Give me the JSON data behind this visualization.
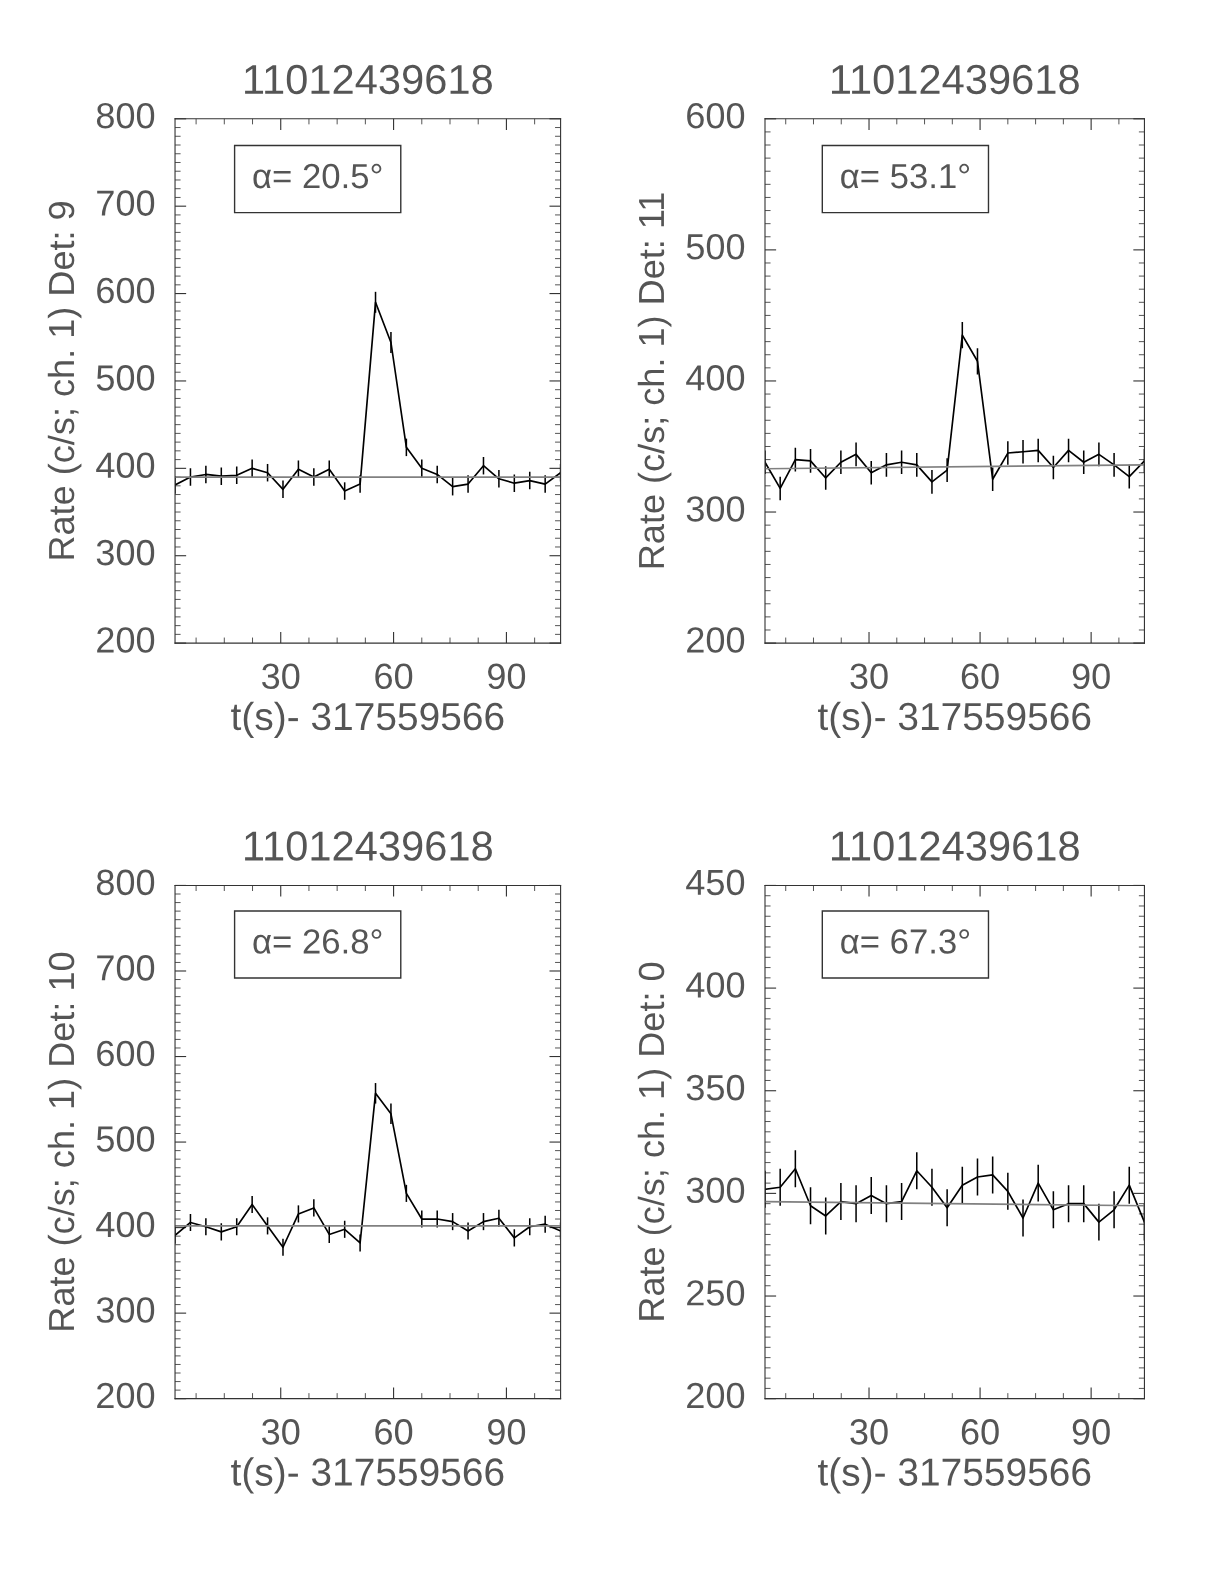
{
  "chart_data": [
    {
      "type": "line",
      "title": "11012439618",
      "xlabel": "t(s)- 317559566",
      "ylabel": "Rate (c/s; ch. 1) Det: 9",
      "annotations": [
        "α= 20.5°"
      ],
      "xlim": [
        1.9,
        104.4
      ],
      "ylim": [
        200,
        800
      ],
      "xticks": [
        30,
        60,
        90
      ],
      "yticks": [
        200,
        300,
        400,
        500,
        600,
        700,
        800
      ],
      "series": [
        {
          "color": "#000000",
          "x": [
            1.9,
            6,
            10.1,
            14.2,
            18.3,
            22.4,
            26.5,
            30.6,
            34.7,
            38.8,
            42.9,
            47,
            51.1,
            55.2,
            59.3,
            63.4,
            67.5,
            71.6,
            75.7,
            79.8,
            83.9,
            88,
            92.1,
            96.2,
            100.3,
            104.4
          ],
          "values": [
            381,
            390,
            393,
            391,
            392,
            400,
            395,
            376,
            399,
            390,
            399,
            374,
            382,
            590,
            544,
            424,
            400,
            393,
            379,
            382,
            403,
            388,
            383,
            386,
            382,
            395
          ],
          "errors": [
            10,
            10,
            10,
            10,
            10,
            10,
            10,
            10,
            10,
            10,
            10,
            10,
            10,
            12,
            12,
            10,
            10,
            10,
            10,
            10,
            10,
            10,
            10,
            10,
            10,
            10
          ]
        },
        {
          "color": "#808080",
          "x": [
            1.9,
            104.4
          ],
          "values": [
            390,
            390
          ]
        }
      ]
    },
    {
      "type": "line",
      "title": "11012439618",
      "xlabel": "t(s)- 317559566",
      "ylabel": "Rate (c/s; ch. 1) Det: 11",
      "annotations": [
        "α= 53.1°"
      ],
      "xlim": [
        1.9,
        104.4
      ],
      "ylim": [
        200,
        600
      ],
      "xticks": [
        30,
        60,
        90
      ],
      "yticks": [
        200,
        300,
        400,
        500,
        600
      ],
      "series": [
        {
          "color": "#000000",
          "x": [
            1.9,
            6,
            10.1,
            14.2,
            18.3,
            22.4,
            26.5,
            30.6,
            34.7,
            38.8,
            42.9,
            47,
            51.1,
            55.2,
            59.3,
            63.4,
            67.5,
            71.6,
            75.7,
            79.8,
            83.9,
            88,
            92.1,
            96.2,
            100.3,
            104.4
          ],
          "values": [
            338,
            318,
            340,
            339,
            326,
            338,
            344,
            330,
            336,
            338,
            336,
            323,
            332,
            435,
            415,
            325,
            345,
            346,
            347,
            334,
            347,
            338,
            344,
            336,
            327,
            339
          ],
          "errors": [
            9,
            9,
            9,
            9,
            9,
            9,
            9,
            9,
            9,
            9,
            9,
            9,
            9,
            10,
            10,
            9,
            9,
            9,
            9,
            9,
            9,
            9,
            9,
            9,
            9,
            9
          ]
        },
        {
          "color": "#808080",
          "x": [
            1.9,
            104.4
          ],
          "values": [
            333,
            336
          ]
        }
      ]
    },
    {
      "type": "line",
      "title": "11012439618",
      "xlabel": "t(s)- 317559566",
      "ylabel": "Rate (c/s; ch. 1) Det: 10",
      "annotations": [
        "α= 26.8°"
      ],
      "xlim": [
        1.9,
        104.4
      ],
      "ylim": [
        200,
        800
      ],
      "xticks": [
        30,
        60,
        90
      ],
      "yticks": [
        200,
        300,
        400,
        500,
        600,
        700,
        800
      ],
      "series": [
        {
          "color": "#000000",
          "x": [
            1.9,
            6,
            10.1,
            14.2,
            18.3,
            22.4,
            26.5,
            30.6,
            34.7,
            38.8,
            42.9,
            47,
            51.1,
            55.2,
            59.3,
            63.4,
            67.5,
            71.6,
            75.7,
            79.8,
            83.9,
            88,
            92.1,
            96.2,
            100.3,
            104.4
          ],
          "values": [
            391,
            406,
            401,
            395,
            401,
            427,
            402,
            377,
            416,
            423,
            392,
            398,
            382,
            557,
            533,
            440,
            410,
            410,
            407,
            396,
            407,
            411,
            388,
            401,
            404,
            396
          ],
          "errors": [
            10,
            10,
            10,
            10,
            10,
            10,
            10,
            10,
            10,
            10,
            10,
            10,
            10,
            12,
            12,
            10,
            10,
            10,
            10,
            10,
            10,
            10,
            10,
            10,
            10,
            10
          ]
        },
        {
          "color": "#808080",
          "x": [
            1.9,
            104.4
          ],
          "values": [
            402,
            402
          ]
        }
      ]
    },
    {
      "type": "line",
      "title": "11012439618",
      "xlabel": "t(s)- 317559566",
      "ylabel": "Rate (c/s; ch. 1) Det: 0",
      "annotations": [
        "α= 67.3°"
      ],
      "xlim": [
        1.9,
        104.4
      ],
      "ylim": [
        200,
        450
      ],
      "xticks": [
        30,
        60,
        90
      ],
      "yticks": [
        200,
        250,
        300,
        350,
        400,
        450
      ],
      "series": [
        {
          "color": "#000000",
          "x": [
            1.9,
            6,
            10.1,
            14.2,
            18.3,
            22.4,
            26.5,
            30.6,
            34.7,
            38.8,
            42.9,
            47,
            51.1,
            55.2,
            59.3,
            63.4,
            67.5,
            71.6,
            75.7,
            79.8,
            83.9,
            88,
            92.1,
            96.2,
            100.3,
            104.4
          ],
          "values": [
            302,
            303,
            312,
            294,
            289,
            296,
            295,
            299,
            295,
            296,
            311,
            303,
            293,
            304,
            308,
            309,
            301,
            288,
            305,
            292,
            295,
            295,
            286,
            292,
            304,
            286
          ],
          "errors": [
            9,
            9,
            9,
            9,
            9,
            9,
            9,
            9,
            9,
            9,
            9,
            9,
            9,
            9,
            9,
            9,
            9,
            9,
            9,
            9,
            9,
            9,
            9,
            9,
            9,
            9
          ]
        },
        {
          "color": "#808080",
          "x": [
            1.9,
            104.4
          ],
          "values": [
            296,
            294
          ]
        }
      ]
    }
  ]
}
